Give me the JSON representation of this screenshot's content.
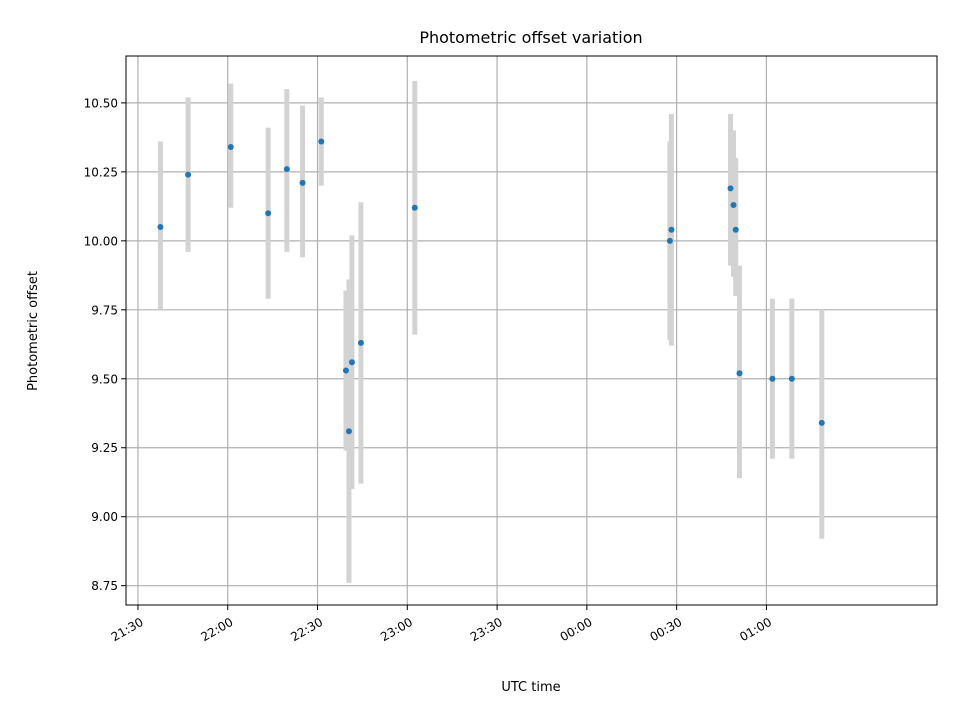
{
  "chart_data": {
    "type": "scatter",
    "title": "Photometric offset variation",
    "xlabel": "UTC time",
    "ylabel": "Photometric offset",
    "grid": true,
    "colors": {
      "point": "#1f77b4",
      "errorbar": "#d3d3d3",
      "grid": "#b0b0b0",
      "axis": "#000000"
    },
    "xlim": [
      "21:26",
      "01:57"
    ],
    "ylim": [
      8.68,
      10.67
    ],
    "x_ticks": [
      "21:30",
      "22:00",
      "22:30",
      "23:00",
      "23:30",
      "00:00",
      "00:30",
      "01:00"
    ],
    "y_ticks": [
      "8.75",
      "9.00",
      "9.25",
      "9.50",
      "9.75",
      "10.00",
      "10.25",
      "10.50"
    ],
    "points": [
      {
        "x": "21:37:30",
        "y": 10.05,
        "ylow": 9.75,
        "yhigh": 10.36
      },
      {
        "x": "21:46:45",
        "y": 10.24,
        "ylow": 9.96,
        "yhigh": 10.52
      },
      {
        "x": "22:01:00",
        "y": 10.34,
        "ylow": 10.12,
        "yhigh": 10.57
      },
      {
        "x": "22:13:30",
        "y": 10.1,
        "ylow": 9.79,
        "yhigh": 10.41
      },
      {
        "x": "22:19:45",
        "y": 10.26,
        "ylow": 9.96,
        "yhigh": 10.55
      },
      {
        "x": "22:25:00",
        "y": 10.21,
        "ylow": 9.94,
        "yhigh": 10.49
      },
      {
        "x": "22:31:15",
        "y": 10.36,
        "ylow": 10.2,
        "yhigh": 10.52
      },
      {
        "x": "22:39:30",
        "y": 9.53,
        "ylow": 9.24,
        "yhigh": 9.82
      },
      {
        "x": "22:40:30",
        "y": 9.31,
        "ylow": 8.76,
        "yhigh": 9.86
      },
      {
        "x": "22:41:30",
        "y": 9.56,
        "ylow": 9.1,
        "yhigh": 10.02
      },
      {
        "x": "22:44:30",
        "y": 9.63,
        "ylow": 9.12,
        "yhigh": 10.14
      },
      {
        "x": "23:02:30",
        "y": 10.12,
        "ylow": 9.66,
        "yhigh": 10.58
      },
      {
        "x": "00:27:45",
        "y": 10.0,
        "ylow": 9.64,
        "yhigh": 10.36
      },
      {
        "x": "00:28:15",
        "y": 10.04,
        "ylow": 9.62,
        "yhigh": 10.46
      },
      {
        "x": "00:48:00",
        "y": 10.19,
        "ylow": 9.91,
        "yhigh": 10.46
      },
      {
        "x": "00:49:00",
        "y": 10.13,
        "ylow": 9.87,
        "yhigh": 10.4
      },
      {
        "x": "00:49:45",
        "y": 10.04,
        "ylow": 9.8,
        "yhigh": 10.3
      },
      {
        "x": "00:51:00",
        "y": 9.52,
        "ylow": 9.14,
        "yhigh": 9.91
      },
      {
        "x": "01:02:00",
        "y": 9.5,
        "ylow": 9.21,
        "yhigh": 9.79
      },
      {
        "x": "01:08:30",
        "y": 9.5,
        "ylow": 9.21,
        "yhigh": 9.79
      },
      {
        "x": "01:18:30",
        "y": 9.34,
        "ylow": 8.92,
        "yhigh": 9.75
      }
    ]
  }
}
